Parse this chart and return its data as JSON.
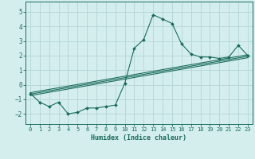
{
  "title": "",
  "xlabel": "Humidex (Indice chaleur)",
  "ylabel": "",
  "bg_color": "#d4eeee",
  "grid_color": "#b8d8d8",
  "line_color": "#1a6b5a",
  "xlim": [
    -0.5,
    23.5
  ],
  "ylim": [
    -2.7,
    5.7
  ],
  "xticks": [
    0,
    1,
    2,
    3,
    4,
    5,
    6,
    7,
    8,
    9,
    10,
    11,
    12,
    13,
    14,
    15,
    16,
    17,
    18,
    19,
    20,
    21,
    22,
    23
  ],
  "yticks": [
    -2,
    -1,
    0,
    1,
    2,
    3,
    4,
    5
  ],
  "main_series": {
    "x": [
      0,
      1,
      2,
      3,
      4,
      5,
      6,
      7,
      8,
      9,
      10,
      11,
      12,
      13,
      14,
      15,
      16,
      17,
      18,
      19,
      20,
      21,
      22,
      23
    ],
    "y": [
      -0.6,
      -1.2,
      -1.5,
      -1.2,
      -2.0,
      -1.9,
      -1.6,
      -1.6,
      -1.5,
      -1.4,
      0.1,
      2.5,
      3.1,
      4.8,
      4.5,
      4.2,
      2.8,
      2.1,
      1.9,
      1.9,
      1.8,
      1.9,
      2.7,
      2.0
    ]
  },
  "linear_lines": [
    {
      "x": [
        0,
        23
      ],
      "y": [
        -0.55,
        2.05
      ]
    },
    {
      "x": [
        0,
        23
      ],
      "y": [
        -0.65,
        1.95
      ]
    },
    {
      "x": [
        0,
        23
      ],
      "y": [
        -0.75,
        1.85
      ]
    }
  ]
}
